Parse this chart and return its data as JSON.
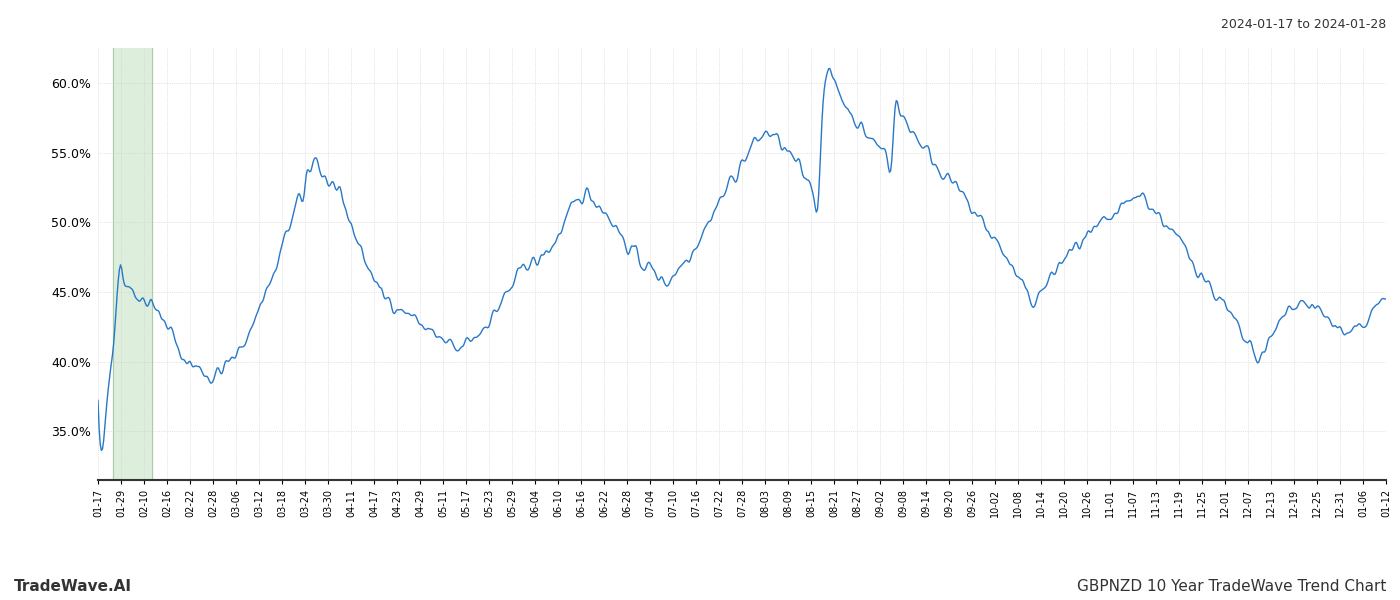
{
  "title_right": "2024-01-17 to 2024-01-28",
  "title_bottom_left": "TradeWave.AI",
  "title_bottom_right": "GBPNZD 10 Year TradeWave Trend Chart",
  "line_color": "#2878c8",
  "highlight_color": "#ddeedd",
  "highlight_border_color": "#aaccaa",
  "ylim": [
    0.315,
    0.625
  ],
  "yticks": [
    0.35,
    0.4,
    0.45,
    0.5,
    0.55,
    0.6
  ],
  "xtick_labels": [
    "01-17",
    "01-29",
    "02-10",
    "02-16",
    "02-22",
    "02-28",
    "03-06",
    "03-12",
    "03-18",
    "03-24",
    "03-30",
    "04-11",
    "04-17",
    "04-23",
    "04-29",
    "05-11",
    "05-17",
    "05-23",
    "05-29",
    "06-04",
    "06-10",
    "06-16",
    "06-22",
    "06-28",
    "07-04",
    "07-10",
    "07-16",
    "07-22",
    "07-28",
    "08-03",
    "08-09",
    "08-15",
    "08-21",
    "08-27",
    "09-02",
    "09-08",
    "09-14",
    "09-20",
    "09-26",
    "10-02",
    "10-08",
    "10-14",
    "10-20",
    "10-26",
    "11-01",
    "11-07",
    "11-13",
    "11-19",
    "11-25",
    "12-01",
    "12-07",
    "12-13",
    "12-19",
    "12-25",
    "12-31",
    "01-06",
    "01-12"
  ],
  "highlight_xstart": 0.012,
  "highlight_xend": 0.042,
  "key_points": [
    [
      0,
      0.37
    ],
    [
      3,
      0.333
    ],
    [
      8,
      0.37
    ],
    [
      15,
      0.43
    ],
    [
      20,
      0.47
    ],
    [
      22,
      0.463
    ],
    [
      28,
      0.455
    ],
    [
      33,
      0.447
    ],
    [
      38,
      0.448
    ],
    [
      42,
      0.443
    ],
    [
      47,
      0.445
    ],
    [
      52,
      0.437
    ],
    [
      57,
      0.43
    ],
    [
      63,
      0.425
    ],
    [
      68,
      0.415
    ],
    [
      72,
      0.405
    ],
    [
      78,
      0.402
    ],
    [
      83,
      0.398
    ],
    [
      90,
      0.395
    ],
    [
      95,
      0.392
    ],
    [
      100,
      0.388
    ],
    [
      106,
      0.392
    ],
    [
      112,
      0.395
    ],
    [
      116,
      0.4
    ],
    [
      122,
      0.402
    ],
    [
      126,
      0.41
    ],
    [
      130,
      0.415
    ],
    [
      135,
      0.422
    ],
    [
      140,
      0.432
    ],
    [
      146,
      0.445
    ],
    [
      152,
      0.455
    ],
    [
      157,
      0.463
    ],
    [
      163,
      0.48
    ],
    [
      167,
      0.49
    ],
    [
      170,
      0.498
    ],
    [
      175,
      0.508
    ],
    [
      178,
      0.515
    ],
    [
      183,
      0.52
    ],
    [
      185,
      0.533
    ],
    [
      189,
      0.54
    ],
    [
      194,
      0.547
    ],
    [
      197,
      0.538
    ],
    [
      202,
      0.53
    ],
    [
      208,
      0.522
    ],
    [
      212,
      0.518
    ],
    [
      215,
      0.525
    ],
    [
      218,
      0.514
    ],
    [
      222,
      0.505
    ],
    [
      226,
      0.497
    ],
    [
      230,
      0.487
    ],
    [
      235,
      0.478
    ],
    [
      240,
      0.467
    ],
    [
      244,
      0.462
    ],
    [
      248,
      0.455
    ],
    [
      252,
      0.448
    ],
    [
      256,
      0.445
    ],
    [
      260,
      0.445
    ],
    [
      264,
      0.44
    ],
    [
      268,
      0.438
    ],
    [
      272,
      0.435
    ],
    [
      276,
      0.435
    ],
    [
      280,
      0.432
    ],
    [
      285,
      0.428
    ],
    [
      290,
      0.425
    ],
    [
      295,
      0.422
    ],
    [
      300,
      0.418
    ],
    [
      305,
      0.415
    ],
    [
      310,
      0.412
    ],
    [
      315,
      0.41
    ],
    [
      320,
      0.407
    ],
    [
      325,
      0.412
    ],
    [
      330,
      0.415
    ],
    [
      335,
      0.418
    ],
    [
      340,
      0.422
    ],
    [
      345,
      0.428
    ],
    [
      350,
      0.432
    ],
    [
      355,
      0.438
    ],
    [
      360,
      0.445
    ],
    [
      365,
      0.45
    ],
    [
      370,
      0.457
    ],
    [
      375,
      0.463
    ],
    [
      380,
      0.47
    ],
    [
      385,
      0.472
    ],
    [
      390,
      0.47
    ],
    [
      395,
      0.476
    ],
    [
      400,
      0.48
    ],
    [
      405,
      0.485
    ],
    [
      410,
      0.492
    ],
    [
      415,
      0.5
    ],
    [
      420,
      0.507
    ],
    [
      425,
      0.513
    ],
    [
      430,
      0.519
    ],
    [
      435,
      0.521
    ],
    [
      440,
      0.517
    ],
    [
      445,
      0.513
    ],
    [
      450,
      0.508
    ],
    [
      455,
      0.503
    ],
    [
      460,
      0.497
    ],
    [
      465,
      0.49
    ],
    [
      470,
      0.483
    ],
    [
      475,
      0.479
    ],
    [
      480,
      0.474
    ],
    [
      485,
      0.47
    ],
    [
      490,
      0.467
    ],
    [
      495,
      0.463
    ],
    [
      500,
      0.46
    ],
    [
      505,
      0.457
    ],
    [
      510,
      0.462
    ],
    [
      515,
      0.466
    ],
    [
      520,
      0.472
    ],
    [
      525,
      0.477
    ],
    [
      530,
      0.483
    ],
    [
      535,
      0.49
    ],
    [
      540,
      0.497
    ],
    [
      545,
      0.505
    ],
    [
      550,
      0.512
    ],
    [
      555,
      0.519
    ],
    [
      560,
      0.526
    ],
    [
      565,
      0.533
    ],
    [
      570,
      0.54
    ],
    [
      575,
      0.546
    ],
    [
      580,
      0.553
    ],
    [
      585,
      0.558
    ],
    [
      590,
      0.562
    ],
    [
      595,
      0.564
    ],
    [
      600,
      0.562
    ],
    [
      605,
      0.557
    ],
    [
      610,
      0.552
    ],
    [
      615,
      0.547
    ],
    [
      620,
      0.542
    ],
    [
      625,
      0.536
    ],
    [
      630,
      0.53
    ],
    [
      635,
      0.524
    ],
    [
      640,
      0.52
    ],
    [
      643,
      0.575
    ],
    [
      646,
      0.606
    ],
    [
      648,
      0.608
    ],
    [
      651,
      0.604
    ],
    [
      655,
      0.598
    ],
    [
      660,
      0.591
    ],
    [
      665,
      0.583
    ],
    [
      670,
      0.577
    ],
    [
      675,
      0.571
    ],
    [
      680,
      0.565
    ],
    [
      685,
      0.561
    ],
    [
      690,
      0.557
    ],
    [
      695,
      0.553
    ],
    [
      700,
      0.55
    ],
    [
      705,
      0.547
    ],
    [
      708,
      0.582
    ],
    [
      712,
      0.578
    ],
    [
      716,
      0.574
    ],
    [
      720,
      0.57
    ],
    [
      725,
      0.564
    ],
    [
      730,
      0.558
    ],
    [
      735,
      0.552
    ],
    [
      740,
      0.547
    ],
    [
      745,
      0.541
    ],
    [
      750,
      0.537
    ],
    [
      755,
      0.531
    ],
    [
      760,
      0.527
    ],
    [
      765,
      0.521
    ],
    [
      770,
      0.516
    ],
    [
      775,
      0.51
    ],
    [
      780,
      0.506
    ],
    [
      785,
      0.5
    ],
    [
      790,
      0.495
    ],
    [
      795,
      0.489
    ],
    [
      800,
      0.484
    ],
    [
      805,
      0.477
    ],
    [
      810,
      0.47
    ],
    [
      815,
      0.462
    ],
    [
      820,
      0.455
    ],
    [
      825,
      0.448
    ],
    [
      830,
      0.444
    ],
    [
      835,
      0.447
    ],
    [
      840,
      0.452
    ],
    [
      845,
      0.458
    ],
    [
      850,
      0.465
    ],
    [
      855,
      0.47
    ],
    [
      860,
      0.475
    ],
    [
      865,
      0.479
    ],
    [
      870,
      0.483
    ],
    [
      875,
      0.486
    ],
    [
      880,
      0.489
    ],
    [
      885,
      0.492
    ],
    [
      890,
      0.496
    ],
    [
      895,
      0.499
    ],
    [
      900,
      0.502
    ],
    [
      905,
      0.506
    ],
    [
      910,
      0.51
    ],
    [
      915,
      0.513
    ],
    [
      920,
      0.517
    ],
    [
      925,
      0.52
    ],
    [
      930,
      0.517
    ],
    [
      935,
      0.512
    ],
    [
      940,
      0.507
    ],
    [
      945,
      0.502
    ],
    [
      950,
      0.497
    ],
    [
      955,
      0.491
    ],
    [
      960,
      0.486
    ],
    [
      965,
      0.481
    ],
    [
      970,
      0.475
    ],
    [
      975,
      0.47
    ],
    [
      980,
      0.463
    ],
    [
      985,
      0.457
    ],
    [
      990,
      0.452
    ],
    [
      995,
      0.445
    ],
    [
      1000,
      0.44
    ],
    [
      1005,
      0.433
    ],
    [
      1010,
      0.427
    ],
    [
      1015,
      0.42
    ],
    [
      1020,
      0.413
    ],
    [
      1025,
      0.407
    ],
    [
      1030,
      0.402
    ],
    [
      1035,
      0.407
    ],
    [
      1040,
      0.413
    ],
    [
      1045,
      0.42
    ],
    [
      1050,
      0.428
    ],
    [
      1055,
      0.435
    ],
    [
      1060,
      0.44
    ],
    [
      1065,
      0.443
    ],
    [
      1070,
      0.443
    ],
    [
      1075,
      0.441
    ],
    [
      1080,
      0.438
    ],
    [
      1085,
      0.435
    ],
    [
      1090,
      0.432
    ],
    [
      1095,
      0.428
    ],
    [
      1100,
      0.425
    ],
    [
      1105,
      0.422
    ],
    [
      1110,
      0.418
    ],
    [
      1115,
      0.42
    ],
    [
      1120,
      0.422
    ],
    [
      1125,
      0.425
    ],
    [
      1129,
      0.43
    ],
    [
      1133,
      0.435
    ],
    [
      1137,
      0.44
    ],
    [
      1141,
      0.443
    ],
    [
      1144,
      0.445
    ]
  ],
  "n_points": 1145,
  "noise_seed": 42,
  "noise_amplitude": 0.006
}
